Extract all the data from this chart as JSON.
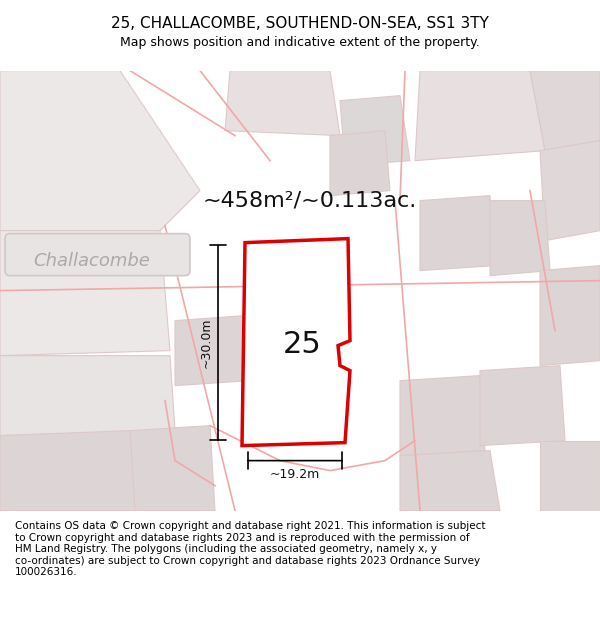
{
  "title": "25, CHALLACOMBE, SOUTHEND-ON-SEA, SS1 3TY",
  "subtitle": "Map shows position and indicative extent of the property.",
  "area_text": "~458m²/~0.113ac.",
  "number_label": "25",
  "dim_v": "~30.0m",
  "dim_h": "~19.2m",
  "street_label": "Challacombe",
  "footer": "Contains OS data © Crown copyright and database right 2021. This information is subject\nto Crown copyright and database rights 2023 and is reproduced with the permission of\nHM Land Registry. The polygons (including the associated geometry, namely x, y\nco-ordinates) are subject to Crown copyright and database rights 2023 Ordnance Survey\n100026316.",
  "bg_color": "#f5f5f5",
  "map_bg": "#f0eeee",
  "plot_color": "#ff0000",
  "plot_fill": "#ffffff",
  "building_color": "#e8d8d8",
  "road_color": "#e8c8c8",
  "title_fontsize": 11,
  "subtitle_fontsize": 9,
  "area_fontsize": 16,
  "label_fontsize": 22,
  "footer_fontsize": 7.5,
  "street_fontsize": 13
}
